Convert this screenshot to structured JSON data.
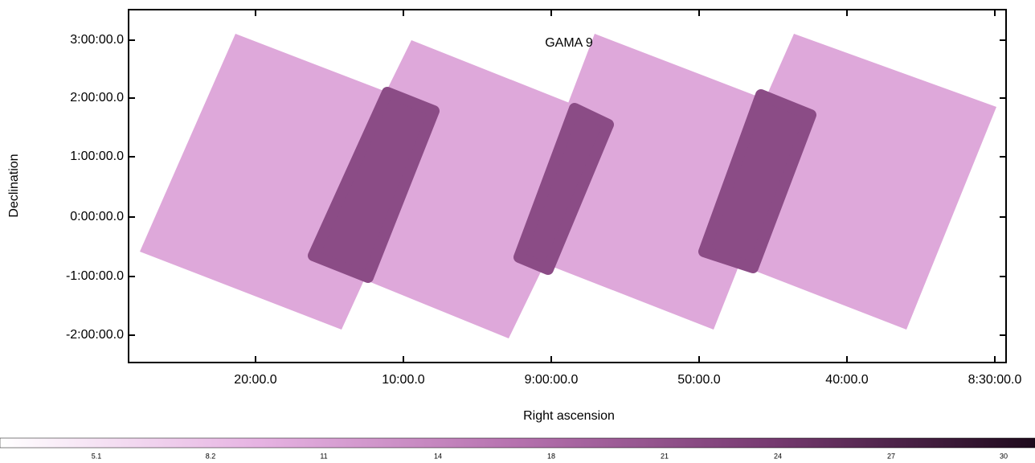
{
  "plot": {
    "title": "GAMA 9",
    "x_label": "Right ascension",
    "y_label": "Declination",
    "x_ticks": [
      "20:00.0",
      "10:00.0",
      "9:00:00.0",
      "50:00.0",
      "40:00.0",
      "8:30:00.0"
    ],
    "y_ticks": [
      "3:00:00.0",
      "2:00:00.0",
      "1:00:00.0",
      "0:00:00.0",
      "-1:00:00.0",
      "-2:00:00.0"
    ]
  },
  "colorbar": {
    "ticks": [
      "5.1",
      "8.2",
      "11",
      "14",
      "18",
      "21",
      "24",
      "27",
      "30"
    ]
  }
}
